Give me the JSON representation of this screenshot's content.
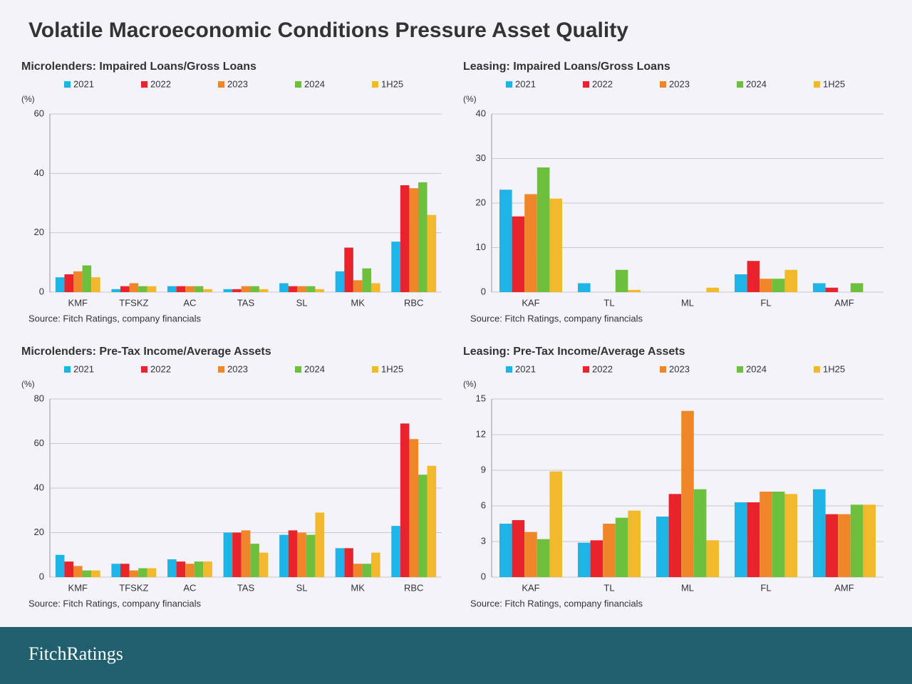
{
  "title": "Volatile Macroeconomic Conditions Pressure Asset Quality",
  "logo": "FitchRatings",
  "chart_data": [
    {
      "type": "bar",
      "title": "Microlenders: Impaired Loans/Gross Loans",
      "y_label": "(%)",
      "categories": [
        "KMF",
        "TFSKZ",
        "AC",
        "TAS",
        "SL",
        "MK",
        "RBC"
      ],
      "series": [
        {
          "name": "2021",
          "color": "#1eb4e8",
          "values": [
            5,
            1,
            2,
            1,
            3,
            7,
            17
          ]
        },
        {
          "name": "2022",
          "color": "#e8232c",
          "values": [
            6,
            2,
            2,
            1,
            2,
            15,
            36
          ]
        },
        {
          "name": "2023",
          "color": "#f0862a",
          "values": [
            7,
            3,
            2,
            2,
            2,
            4,
            35
          ]
        },
        {
          "name": "2024",
          "color": "#6dbf3e",
          "values": [
            9,
            2,
            2,
            2,
            2,
            8,
            37
          ]
        },
        {
          "name": "1H25",
          "color": "#f2b92c",
          "values": [
            5,
            2,
            1,
            1,
            1,
            3,
            26
          ]
        }
      ],
      "ylim": [
        0,
        60
      ],
      "yticks": [
        0,
        20,
        40,
        60
      ],
      "grid": true,
      "source": "Source: Fitch Ratings, company financials"
    },
    {
      "type": "bar",
      "title": "Leasing: Impaired Loans/Gross Loans",
      "y_label": "(%)",
      "categories": [
        "KAF",
        "TL",
        "ML",
        "FL",
        "AMF"
      ],
      "series": [
        {
          "name": "2021",
          "color": "#1eb4e8",
          "values": [
            23,
            2,
            0,
            4,
            2
          ]
        },
        {
          "name": "2022",
          "color": "#e8232c",
          "values": [
            17,
            0,
            0,
            7,
            1
          ]
        },
        {
          "name": "2023",
          "color": "#f0862a",
          "values": [
            22,
            0,
            0,
            3,
            0
          ]
        },
        {
          "name": "2024",
          "color": "#6dbf3e",
          "values": [
            28,
            5,
            0,
            3,
            2
          ]
        },
        {
          "name": "1H25",
          "color": "#f2b92c",
          "values": [
            21,
            0.5,
            1,
            5,
            0
          ]
        }
      ],
      "ylim": [
        0,
        40
      ],
      "yticks": [
        0,
        10,
        20,
        30,
        40
      ],
      "grid": true,
      "source": "Source: Fitch Ratings, company financials"
    },
    {
      "type": "bar",
      "title": "Microlenders: Pre-Tax Income/Average Assets",
      "y_label": "(%)",
      "categories": [
        "KMF",
        "TFSKZ",
        "AC",
        "TAS",
        "SL",
        "MK",
        "RBC"
      ],
      "series": [
        {
          "name": "2021",
          "color": "#1eb4e8",
          "values": [
            10,
            6,
            8,
            20,
            19,
            13,
            23
          ]
        },
        {
          "name": "2022",
          "color": "#e8232c",
          "values": [
            7,
            6,
            7,
            20,
            21,
            13,
            69
          ]
        },
        {
          "name": "2023",
          "color": "#f0862a",
          "values": [
            5,
            3,
            6,
            21,
            20,
            6,
            62
          ]
        },
        {
          "name": "2024",
          "color": "#6dbf3e",
          "values": [
            3,
            4,
            7,
            15,
            19,
            6,
            46
          ]
        },
        {
          "name": "1H25",
          "color": "#f2b92c",
          "values": [
            3,
            4,
            7,
            11,
            29,
            11,
            50
          ]
        }
      ],
      "ylim": [
        0,
        80
      ],
      "yticks": [
        0,
        20,
        40,
        60,
        80
      ],
      "grid": true,
      "source": "Source: Fitch Ratings, company financials"
    },
    {
      "type": "bar",
      "title": "Leasing: Pre-Tax Income/Average Assets",
      "y_label": "(%)",
      "categories": [
        "KAF",
        "TL",
        "ML",
        "FL",
        "AMF"
      ],
      "series": [
        {
          "name": "2021",
          "color": "#1eb4e8",
          "values": [
            4.5,
            2.9,
            5.1,
            6.3,
            7.4
          ]
        },
        {
          "name": "2022",
          "color": "#e8232c",
          "values": [
            4.8,
            3.1,
            7,
            6.3,
            5.3
          ]
        },
        {
          "name": "2023",
          "color": "#f0862a",
          "values": [
            3.8,
            4.5,
            14,
            7.2,
            5.3
          ]
        },
        {
          "name": "2024",
          "color": "#6dbf3e",
          "values": [
            3.2,
            5,
            7.4,
            7.2,
            6.1
          ]
        },
        {
          "name": "1H25",
          "color": "#f2b92c",
          "values": [
            8.9,
            5.6,
            3.1,
            7,
            6.1
          ]
        }
      ],
      "ylim": [
        0,
        15
      ],
      "yticks": [
        0,
        3,
        6,
        9,
        12,
        15
      ],
      "grid": true,
      "source": "Source: Fitch Ratings, company financials"
    }
  ]
}
